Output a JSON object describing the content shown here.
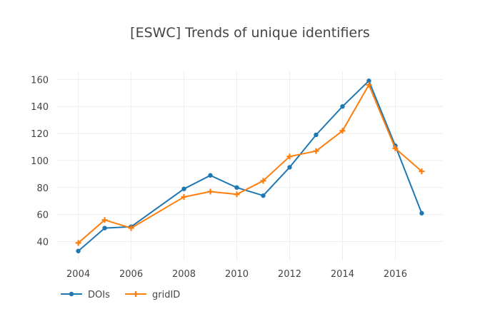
{
  "chart_data": {
    "type": "line",
    "title": "[ESWC] Trends of unique identifiers",
    "xlabel": "",
    "ylabel": "",
    "x": [
      2004,
      2005,
      2006,
      2008,
      2009,
      2010,
      2011,
      2012,
      2013,
      2014,
      2015,
      2016,
      2017
    ],
    "xlim": [
      2003.2,
      2017.8
    ],
    "ylim": [
      26,
      166
    ],
    "x_ticks": [
      2004,
      2006,
      2008,
      2010,
      2012,
      2014,
      2016
    ],
    "y_ticks": [
      40,
      60,
      80,
      100,
      120,
      140,
      160
    ],
    "grid": true,
    "legend_position": "bottom-left",
    "series": [
      {
        "name": "DOIs",
        "color": "#1f77b4",
        "marker": "circle",
        "values": [
          33,
          50,
          51,
          79,
          89,
          80,
          74,
          95,
          119,
          140,
          159,
          111,
          61
        ]
      },
      {
        "name": "gridID",
        "color": "#ff7f0e",
        "marker": "cross",
        "values": [
          39,
          56,
          50,
          73,
          77,
          75,
          85,
          103,
          107,
          122,
          156,
          109,
          92
        ]
      }
    ]
  }
}
